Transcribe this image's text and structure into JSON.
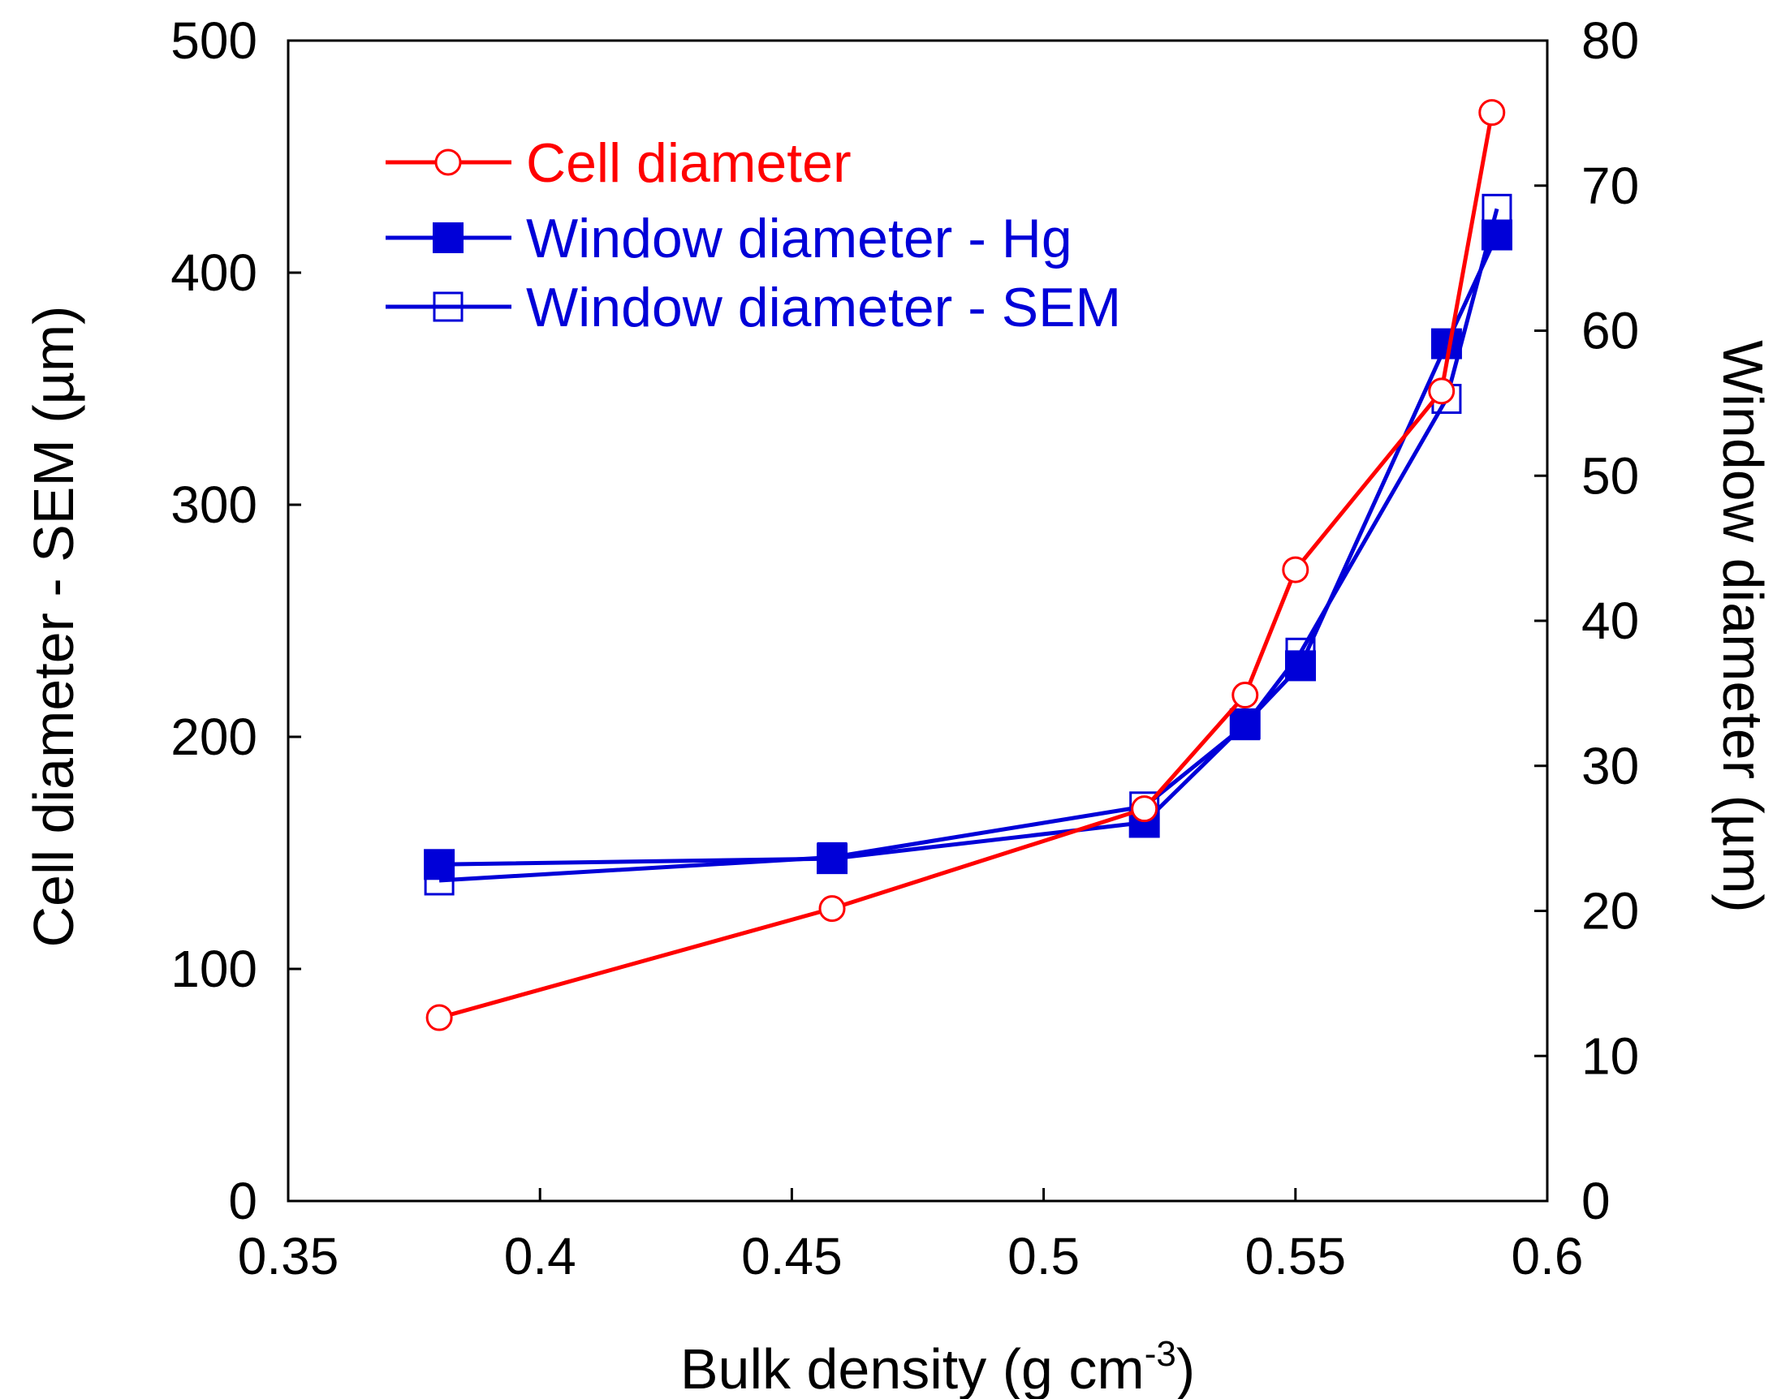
{
  "colors": {
    "red": "#ff0000",
    "blue": "#0000d8",
    "axis": "#000000",
    "background": "#ffffff"
  },
  "chart_data": {
    "type": "line",
    "title": "",
    "xlabel": "Bulk density (g cm",
    "xlabel_sup": "-3",
    "xlabel_close": ")",
    "ylabel_left": "Cell diameter - SEM (µm)",
    "ylabel_right": "Window diameter (µm)",
    "x_ticks": [
      "0.35",
      "0.4",
      "0.45",
      "0.5",
      "0.55",
      "0.6"
    ],
    "x_tick_values": [
      0.35,
      0.4,
      0.45,
      0.5,
      0.55,
      0.6
    ],
    "y_left_ticks": [
      "0",
      "100",
      "200",
      "300",
      "400",
      "500"
    ],
    "y_left_tick_values": [
      0,
      100,
      200,
      300,
      400,
      500
    ],
    "y_right_ticks": [
      "0",
      "10",
      "20",
      "30",
      "40",
      "50",
      "60",
      "70",
      "80"
    ],
    "y_right_tick_values": [
      0,
      10,
      20,
      30,
      40,
      50,
      60,
      70,
      80
    ],
    "xlim": [
      0.35,
      0.6
    ],
    "ylim_left": [
      0,
      500
    ],
    "ylim_right": [
      0,
      80
    ],
    "legend_position": "upper-left",
    "series": [
      {
        "name": "Cell diameter",
        "axis": "left",
        "color": "#ff0000",
        "marker": "open-circle",
        "x": [
          0.38,
          0.458,
          0.52,
          0.54,
          0.55,
          0.579,
          0.589
        ],
        "y": [
          79,
          126,
          169,
          218,
          272,
          349,
          469
        ]
      },
      {
        "name": "Window diameter - Hg",
        "axis": "right",
        "color": "#0000d8",
        "marker": "filled-square",
        "x": [
          0.38,
          0.458,
          0.52,
          0.54,
          0.551,
          0.58,
          0.59
        ],
        "y": [
          23.2,
          23.6,
          26.1,
          32.9,
          36.9,
          59.1,
          66.6
        ]
      },
      {
        "name": "Window diameter - SEM",
        "axis": "right",
        "color": "#0000d8",
        "marker": "open-square",
        "x": [
          0.38,
          0.458,
          0.52,
          0.54,
          0.551,
          0.58,
          0.59
        ],
        "y": [
          22.1,
          23.7,
          27.2,
          32.8,
          37.8,
          55.3,
          68.4
        ]
      }
    ]
  }
}
